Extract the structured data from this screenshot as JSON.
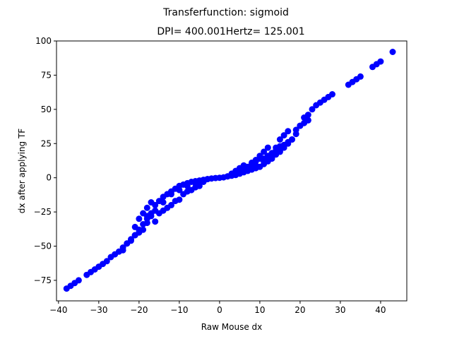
{
  "chart_data": {
    "type": "scatter",
    "suptitle": "Transferfunction: sigmoid",
    "title": "DPI= 400.001Hertz= 125.001",
    "xlabel": "Raw Mouse dx",
    "ylabel": "dx after applying TF",
    "xlim": [
      -40.5,
      46.5
    ],
    "ylim": [
      -90,
      100
    ],
    "xticks": [
      -40,
      -30,
      -20,
      -10,
      0,
      10,
      20,
      30,
      40
    ],
    "yticks": [
      -75,
      -50,
      -25,
      0,
      25,
      50,
      75,
      100
    ],
    "grid": false,
    "marker_color": "#0000ff",
    "series": [
      {
        "x": [
          -38,
          -37,
          -36,
          -35,
          -33,
          -32,
          -31,
          -30,
          -29,
          -28,
          -27,
          -26,
          -25,
          -24,
          -23,
          -22,
          -21,
          -21,
          -20,
          -20,
          -19,
          -19,
          -18,
          -18,
          -17,
          -17,
          -16,
          -15,
          -14,
          -13,
          -12,
          -11,
          -10,
          -9,
          -8,
          -7,
          -6,
          -5,
          -4,
          -3,
          -2,
          -1,
          0,
          1,
          2,
          3,
          4,
          5,
          6,
          7,
          7,
          8,
          8,
          9,
          9,
          10,
          10,
          11,
          11,
          12,
          12,
          13,
          13,
          14,
          14,
          15,
          15,
          16,
          16,
          17,
          17,
          18,
          19,
          20,
          21,
          21,
          22,
          22,
          23,
          24,
          25,
          26,
          27,
          28,
          32,
          33,
          34,
          35,
          38,
          39,
          40,
          43,
          -22,
          -21,
          -19,
          -18,
          -17,
          -16,
          -14,
          -12,
          -10,
          -9,
          -7,
          -6,
          -4,
          3,
          4,
          5,
          6,
          8,
          9,
          10,
          12,
          14,
          16,
          18,
          -15,
          -13,
          -11,
          -8,
          -5,
          -3,
          2,
          6,
          11,
          13,
          15,
          17,
          -20,
          -18,
          -16,
          -14,
          -12,
          -10,
          -8,
          -6,
          7,
          9,
          11,
          13,
          15,
          19,
          20,
          22,
          -24,
          -23
        ],
        "y": [
          -81,
          -79,
          -77,
          -75,
          -71,
          -69,
          -67,
          -65,
          -63,
          -61,
          -58,
          -56,
          -54,
          -51,
          -48,
          -45,
          -42,
          -36,
          -38,
          -30,
          -34,
          -26,
          -30,
          -22,
          -26,
          -18,
          -20,
          -17,
          -14,
          -12,
          -10,
          -8,
          -6,
          -5,
          -4,
          -3,
          -2.5,
          -2,
          -1.5,
          -1,
          -0.5,
          -0.2,
          0,
          0.3,
          1,
          1.5,
          2,
          3,
          4,
          5,
          8,
          6,
          11,
          7,
          13,
          8,
          16,
          10,
          19,
          12,
          22,
          14,
          16,
          17,
          22,
          19,
          28,
          22,
          31,
          26,
          34,
          28,
          32,
          38,
          40,
          44,
          46,
          42,
          50,
          53,
          55,
          57,
          59,
          61,
          68,
          70,
          72,
          74,
          81,
          83,
          85,
          92,
          -46,
          -42,
          -38,
          -33,
          -28,
          -32,
          -24,
          -20,
          -16,
          -12,
          -9,
          -7,
          -3,
          3,
          5,
          7,
          9,
          10,
          12,
          14,
          16,
          20,
          24,
          28,
          -26,
          -22,
          -17,
          -10,
          -6,
          -1,
          1,
          6,
          12,
          15,
          20,
          25,
          -40,
          -28,
          -24,
          -18,
          -12,
          -9,
          -6,
          -4,
          6,
          9,
          14,
          18,
          23,
          35,
          38,
          42,
          -53,
          -48
        ]
      }
    ]
  }
}
